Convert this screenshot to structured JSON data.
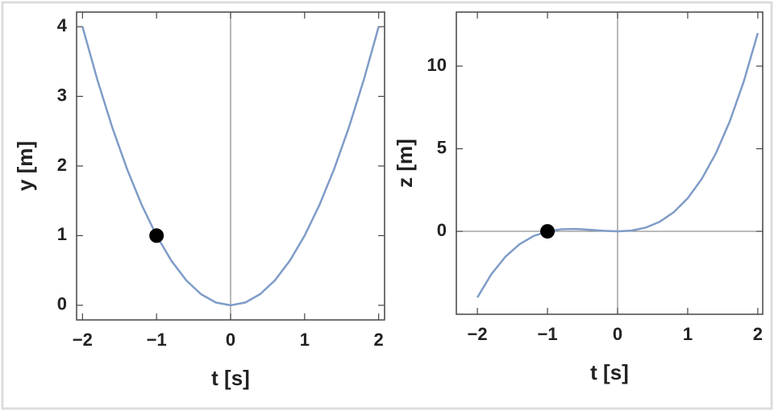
{
  "chart_data": [
    {
      "type": "line",
      "xlabel": "t [s]",
      "ylabel": "y [m]",
      "x": [
        -2,
        -1.8,
        -1.6,
        -1.4,
        -1.2,
        -1,
        -0.8,
        -0.6,
        -0.4,
        -0.2,
        0,
        0.2,
        0.4,
        0.6,
        0.8,
        1,
        1.2,
        1.4,
        1.6,
        1.8,
        2
      ],
      "series": [
        {
          "color": "#7f9cc8",
          "values": [
            4,
            3.24,
            2.56,
            1.96,
            1.44,
            1,
            0.64,
            0.36,
            0.16,
            0.04,
            0,
            0.04,
            0.16,
            0.36,
            0.64,
            1,
            1.44,
            1.96,
            2.56,
            3.24,
            4
          ]
        }
      ],
      "marker": {
        "x": -1,
        "y": 1,
        "color": "#000000"
      },
      "xlim": [
        -2.08,
        2.08
      ],
      "ylim": [
        -0.21,
        4.21
      ],
      "xticks": [
        {
          "value": -2,
          "label": "−2"
        },
        {
          "value": -1,
          "label": "−1"
        },
        0,
        1,
        2
      ],
      "yticks": [
        0,
        1,
        2,
        3,
        4
      ]
    },
    {
      "type": "line",
      "xlabel": "t [s]",
      "ylabel": "z [m]",
      "x": [
        -2,
        -1.8,
        -1.6,
        -1.4,
        -1.2,
        -1,
        -0.8,
        -0.6,
        -0.4,
        -0.2,
        0,
        0.2,
        0.4,
        0.6,
        0.8,
        1,
        1.2,
        1.4,
        1.6,
        1.8,
        2
      ],
      "series": [
        {
          "color": "#7f9cc8",
          "values": [
            -4,
            -2.592,
            -1.536,
            -0.784,
            -0.288,
            0,
            0.128,
            0.144,
            0.096,
            0.032,
            0,
            0.048,
            0.224,
            0.576,
            1.152,
            2,
            3.168,
            4.704,
            6.656,
            9.072,
            12
          ]
        }
      ],
      "marker": {
        "x": -1,
        "y": 0,
        "color": "#000000"
      },
      "xlim": [
        -2.3,
        2.07
      ],
      "ylim": [
        -5.02,
        13.27
      ],
      "xticks": [
        {
          "value": -2,
          "label": "−2"
        },
        {
          "value": -1,
          "label": "−1"
        },
        0,
        1,
        2
      ],
      "yticks": [
        0,
        5,
        10
      ]
    }
  ]
}
